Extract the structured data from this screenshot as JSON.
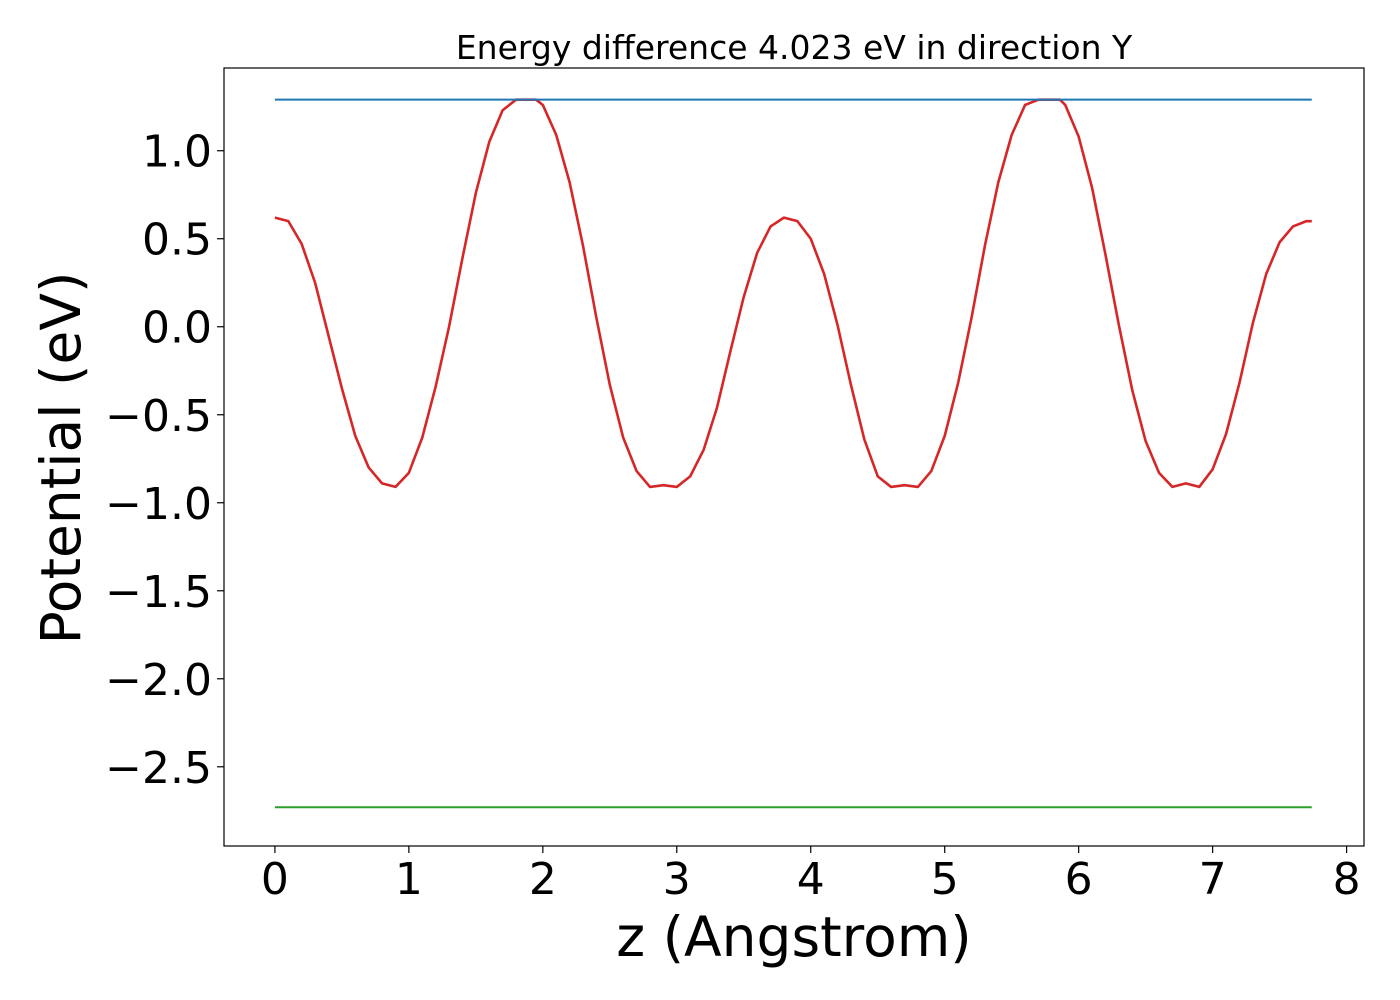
{
  "chart_data": {
    "type": "line",
    "title": "Energy difference 4.023 eV in direction Y",
    "xlabel": "z (Angstrom)",
    "ylabel": "Potential (eV)",
    "xlim": [
      -0.38,
      8.13
    ],
    "ylim": [
      -2.95,
      1.47
    ],
    "xticks": [
      0,
      1,
      2,
      3,
      4,
      5,
      6,
      7,
      8
    ],
    "xtick_labels": [
      "0",
      "1",
      "2",
      "3",
      "4",
      "5",
      "6",
      "7",
      "8"
    ],
    "yticks": [
      1.0,
      0.5,
      0.0,
      -0.5,
      -1.0,
      -1.5,
      -2.0,
      -2.5
    ],
    "ytick_labels": [
      "1.0",
      "0.5",
      "0.0",
      "−0.5",
      "−1.0",
      "−1.5",
      "−2.0",
      "−2.5"
    ],
    "grid": false,
    "legend": "none",
    "series": [
      {
        "color": "#d62728",
        "x": [
          0.0,
          0.1,
          0.2,
          0.3,
          0.4,
          0.5,
          0.6,
          0.7,
          0.8,
          0.9,
          1.0,
          1.1,
          1.2,
          1.3,
          1.4,
          1.5,
          1.6,
          1.7,
          1.8,
          1.9,
          1.95,
          2.0,
          2.1,
          2.2,
          2.3,
          2.4,
          2.5,
          2.6,
          2.7,
          2.8,
          2.9,
          3.0,
          3.1,
          3.2,
          3.3,
          3.4,
          3.5,
          3.6,
          3.7,
          3.8,
          3.9,
          4.0,
          4.1,
          4.2,
          4.3,
          4.4,
          4.5,
          4.6,
          4.7,
          4.8,
          4.9,
          5.0,
          5.1,
          5.2,
          5.3,
          5.4,
          5.5,
          5.6,
          5.7,
          5.8,
          5.86,
          5.9,
          6.0,
          6.1,
          6.2,
          6.3,
          6.4,
          6.5,
          6.6,
          6.7,
          6.8,
          6.9,
          7.0,
          7.1,
          7.2,
          7.3,
          7.4,
          7.5,
          7.6,
          7.7,
          7.74
        ],
        "y": [
          0.62,
          0.6,
          0.47,
          0.25,
          -0.05,
          -0.35,
          -0.62,
          -0.8,
          -0.89,
          -0.91,
          -0.83,
          -0.63,
          -0.34,
          0.0,
          0.39,
          0.76,
          1.05,
          1.23,
          1.29,
          1.29,
          1.29,
          1.26,
          1.09,
          0.82,
          0.46,
          0.05,
          -0.33,
          -0.63,
          -0.82,
          -0.91,
          -0.9,
          -0.91,
          -0.85,
          -0.7,
          -0.46,
          -0.14,
          0.17,
          0.42,
          0.57,
          0.62,
          0.6,
          0.5,
          0.3,
          0.01,
          -0.33,
          -0.64,
          -0.85,
          -0.91,
          -0.9,
          -0.91,
          -0.82,
          -0.62,
          -0.32,
          0.05,
          0.46,
          0.82,
          1.09,
          1.26,
          1.29,
          1.29,
          1.29,
          1.26,
          1.08,
          0.79,
          0.41,
          0.01,
          -0.36,
          -0.65,
          -0.83,
          -0.91,
          -0.89,
          -0.91,
          -0.81,
          -0.61,
          -0.32,
          0.02,
          0.3,
          0.48,
          0.57,
          0.6,
          0.6
        ]
      },
      {
        "color": "#1f77b4",
        "x": [
          0.0,
          7.74
        ],
        "y": [
          1.29,
          1.29
        ]
      },
      {
        "color": "#2ca02c",
        "x": [
          0.0,
          7.74
        ],
        "y": [
          -2.73,
          -2.73
        ]
      }
    ]
  }
}
